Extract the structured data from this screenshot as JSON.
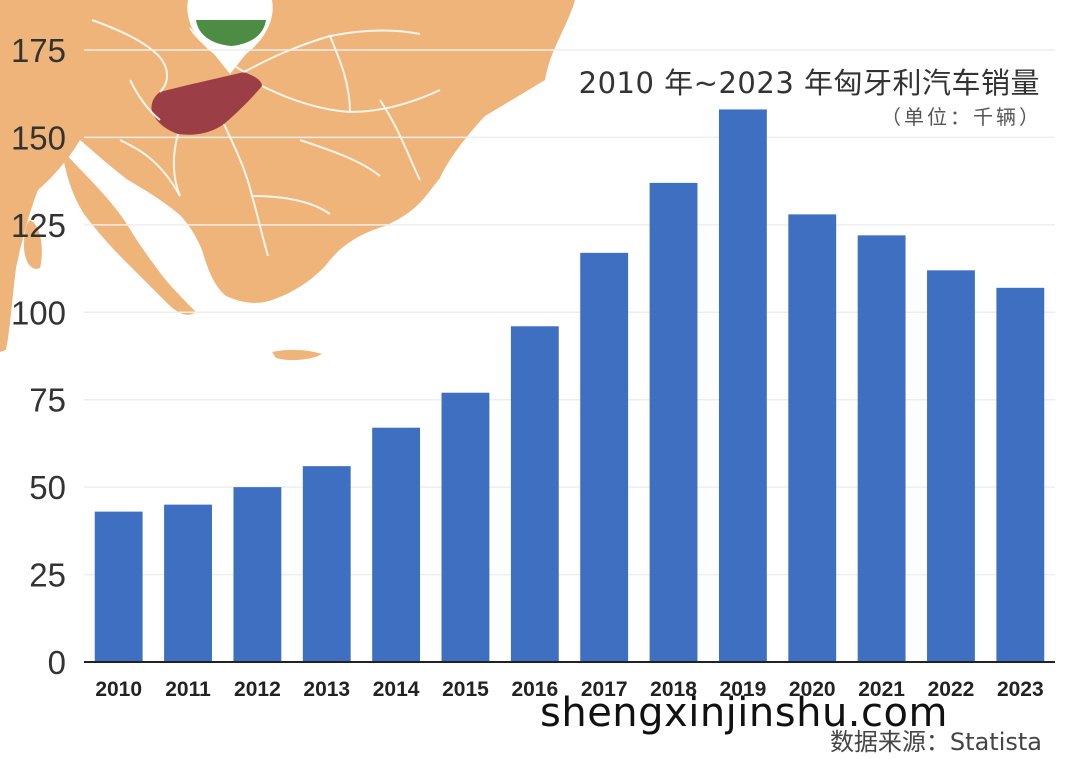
{
  "chart_data": {
    "type": "bar",
    "title": "2010 年~2023 年匈牙利汽车销量",
    "subtitle": "（单位：千辆）",
    "categories": [
      "2010",
      "2011",
      "2012",
      "2013",
      "2014",
      "2015",
      "2016",
      "2017",
      "2018",
      "2019",
      "2020",
      "2021",
      "2022",
      "2023"
    ],
    "values": [
      43,
      45,
      50,
      56,
      67,
      77,
      96,
      117,
      137,
      158,
      128,
      122,
      112,
      107
    ],
    "ylim": [
      0,
      175
    ],
    "yticks": [
      0,
      25,
      50,
      75,
      100,
      125,
      150,
      175
    ],
    "xlabel": "",
    "ylabel": "",
    "grid": true,
    "bar_color": "#3f6fc1"
  },
  "source": "数据来源：Statista",
  "watermark": "shengxinjinshu.com",
  "map": {
    "land_color": "#efb47a",
    "highlight_color": "#9c3e45",
    "flag_colors": [
      "#ffffff",
      "#4c8c43"
    ]
  }
}
